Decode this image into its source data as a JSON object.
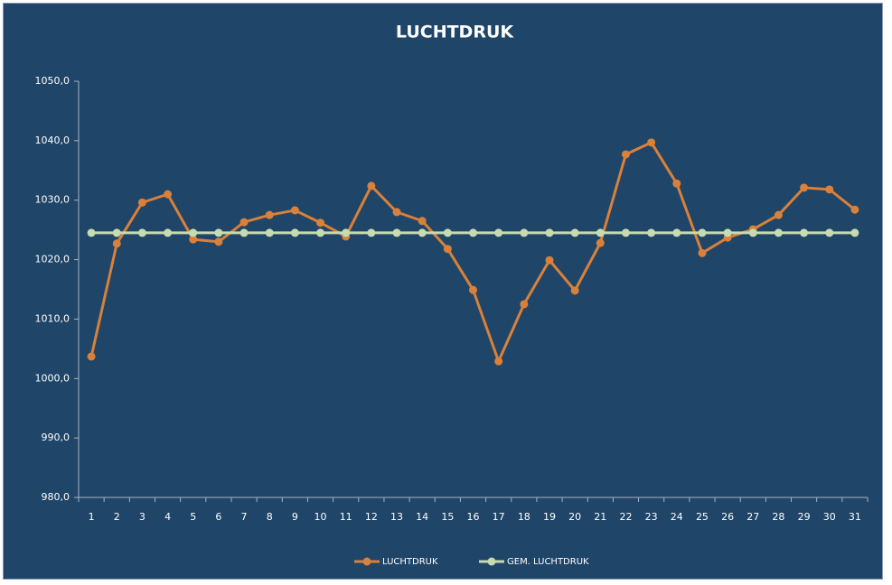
{
  "chart_data": {
    "type": "line",
    "title": "LUCHTDRUK",
    "categories": [
      "1",
      "2",
      "3",
      "4",
      "5",
      "6",
      "7",
      "8",
      "9",
      "10",
      "11",
      "12",
      "13",
      "14",
      "15",
      "16",
      "17",
      "18",
      "19",
      "20",
      "21",
      "22",
      "23",
      "24",
      "25",
      "26",
      "27",
      "28",
      "29",
      "30",
      "31"
    ],
    "series": [
      {
        "name": "LUCHTDRUK",
        "color": "#d9803a",
        "values": [
          1003.7,
          1022.7,
          1029.6,
          1031.0,
          1023.4,
          1023.0,
          1026.3,
          1027.5,
          1028.3,
          1026.2,
          1023.9,
          1032.4,
          1028.0,
          1026.5,
          1021.8,
          1014.9,
          1002.9,
          1012.5,
          1019.9,
          1014.8,
          1022.8,
          1037.7,
          1039.7,
          1032.8,
          1021.1,
          1023.7,
          1025.1,
          1027.5,
          1032.1,
          1031.8,
          1028.4
        ]
      },
      {
        "name": "GEM. LUCHTDRUK",
        "color": "#c6dbb0",
        "values": [
          1024.5,
          1024.5,
          1024.5,
          1024.5,
          1024.5,
          1024.5,
          1024.5,
          1024.5,
          1024.5,
          1024.5,
          1024.5,
          1024.5,
          1024.5,
          1024.5,
          1024.5,
          1024.5,
          1024.5,
          1024.5,
          1024.5,
          1024.5,
          1024.5,
          1024.5,
          1024.5,
          1024.5,
          1024.5,
          1024.5,
          1024.5,
          1024.5,
          1024.5,
          1024.5,
          1024.5
        ]
      }
    ],
    "ylim": [
      980,
      1050
    ],
    "yticks": [
      {
        "value": 980,
        "label": "980,0"
      },
      {
        "value": 990,
        "label": "990,0"
      },
      {
        "value": 1000,
        "label": "1000,0"
      },
      {
        "value": 1010,
        "label": "1010,0"
      },
      {
        "value": 1020,
        "label": "1020,0"
      },
      {
        "value": 1030,
        "label": "1030,0"
      },
      {
        "value": 1040,
        "label": "1040,0"
      },
      {
        "value": 1050,
        "label": "1050,0"
      }
    ],
    "grid": false,
    "legend": "bottom"
  }
}
